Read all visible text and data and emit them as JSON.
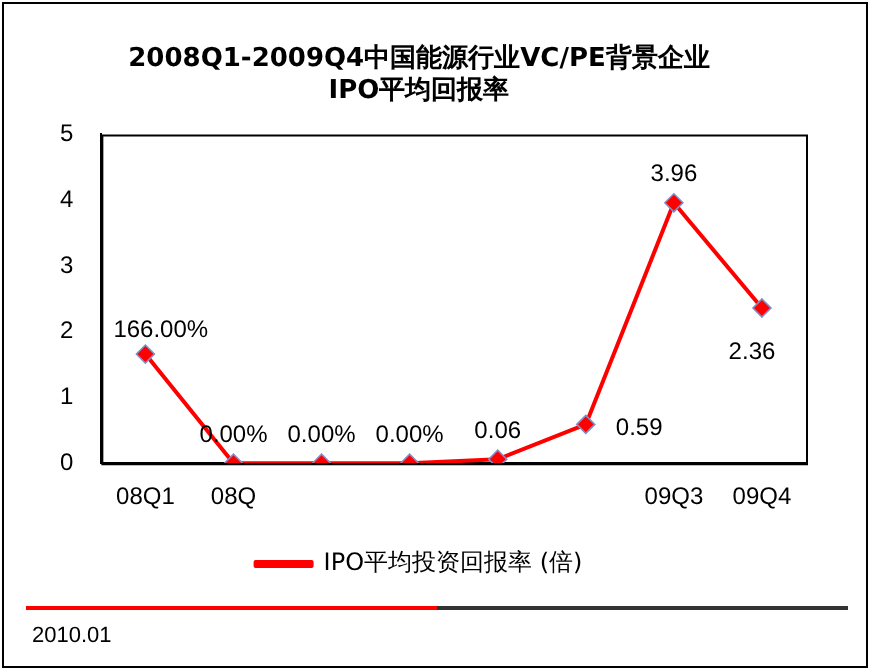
{
  "chart_data": {
    "type": "line",
    "title": "2008Q1-2009Q4中国能源行业VC/PE背景企业\nIPO平均回报率",
    "categories": [
      "08Q1",
      "08Q",
      null,
      null,
      null,
      null,
      "09Q3",
      "09Q4"
    ],
    "series": [
      {
        "name": "IPO平均投资回报率 (倍)",
        "color": "#ff0000",
        "values": [
          1.66,
          0,
          0,
          0,
          0.06,
          0.59,
          3.96,
          2.36
        ],
        "value_labels": [
          "166.00%",
          "0.00%",
          "0.00%",
          "0.00%",
          "0.06",
          "0.59",
          "3.96",
          "2.36"
        ]
      }
    ],
    "ylim": [
      0,
      5
    ],
    "yticks": [
      0,
      1,
      2,
      3,
      4,
      5
    ],
    "grid": false,
    "legend": "bottom",
    "marker": "diamond",
    "line_style": "solid",
    "annotations": [
      "2010.01"
    ]
  }
}
